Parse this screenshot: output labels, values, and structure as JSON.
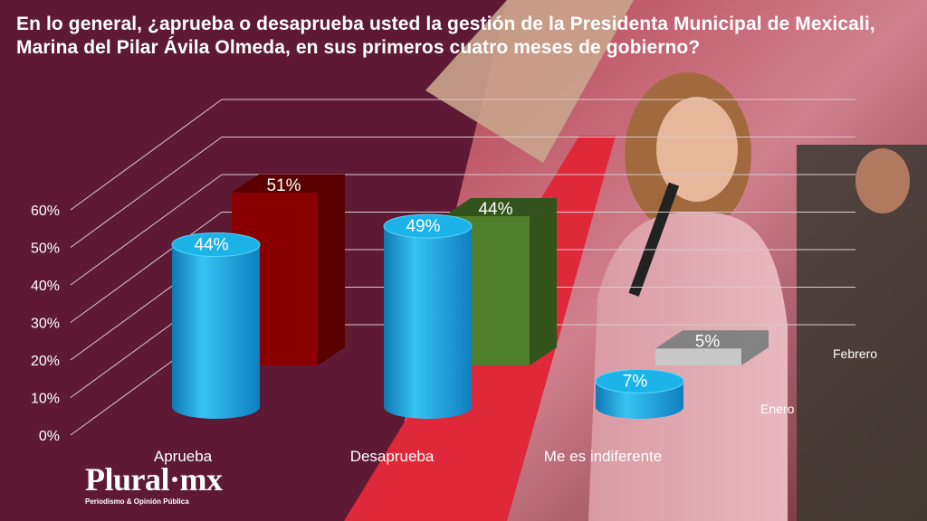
{
  "title": "En lo general, ¿aprueba o desaprueba usted la gestión de la Presidenta Municipal de Mexicali, Marina del Pilar Ávila Olmeda, en sus primeros cuatro meses de gobierno?",
  "logo": {
    "main": "Plural·mx",
    "sub": "Periodismo & Opinión Pública"
  },
  "colors": {
    "background": "#5e1a35",
    "enero": "#1fa7de",
    "aprueba_febrero": "#8a0000",
    "desaprueba_febrero": "#4f7f2c",
    "indiferente_febrero": "#c8c8c8"
  },
  "chart_data": {
    "type": "bar",
    "title": "En lo general, ¿aprueba o desaprueba usted la gestión de la Presidenta Municipal de Mexicali, Marina del Pilar Ávila Olmeda, en sus primeros cuatro meses de gobierno?",
    "categories": [
      "Aprueba",
      "Desaprueba",
      "Me es indiferente"
    ],
    "series": [
      {
        "name": "Enero",
        "values": [
          44,
          49,
          7
        ],
        "labels": [
          "44%",
          "49%",
          "7%"
        ]
      },
      {
        "name": "Febrero",
        "values": [
          51,
          44,
          5
        ],
        "labels": [
          "51%",
          "44%",
          "5%"
        ]
      }
    ],
    "y_ticks": [
      "0%",
      "10%",
      "20%",
      "30%",
      "40%",
      "50%",
      "60%"
    ],
    "ylim": [
      0,
      60
    ],
    "grid": true,
    "legend": "inline"
  }
}
